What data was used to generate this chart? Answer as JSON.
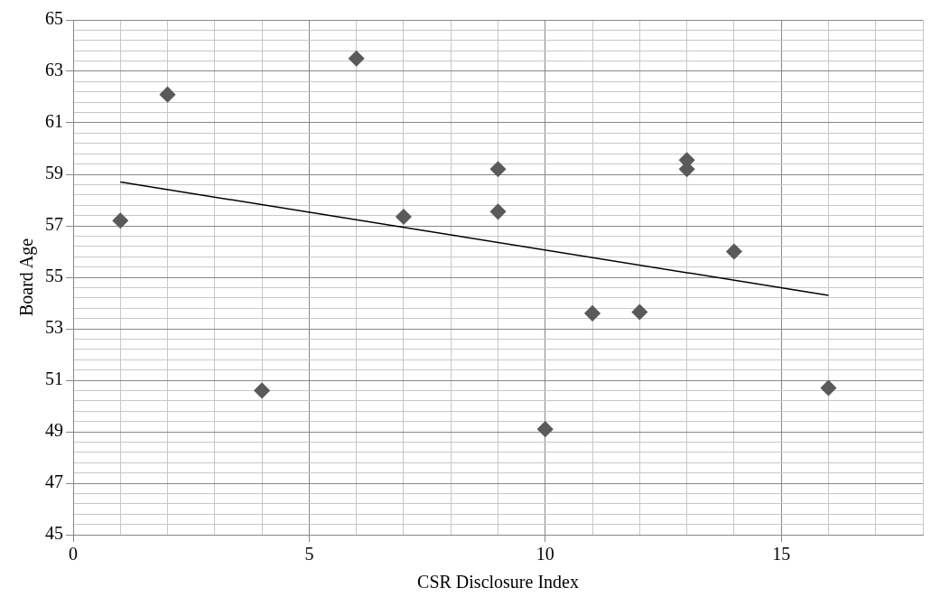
{
  "chart_data": {
    "type": "scatter",
    "xlabel": "CSR Disclosure Index",
    "ylabel": "Board Age",
    "x": [
      1,
      2,
      4,
      6,
      7,
      9,
      9,
      10,
      11,
      12,
      13,
      13,
      14,
      16
    ],
    "series": [
      {
        "color": "#5a5a5a",
        "marker": "diamond",
        "values": [
          57.2,
          62.1,
          50.6,
          63.5,
          57.35,
          59.2,
          57.55,
          49.1,
          53.6,
          53.65,
          59.55,
          59.2,
          56.0,
          50.7
        ]
      },
      {
        "type": "line",
        "color": "#000000",
        "marker": "none",
        "line_style": "solid",
        "x": [
          1,
          16
        ],
        "values": [
          58.7,
          54.3
        ]
      }
    ],
    "xlim": [
      0,
      18
    ],
    "xticks": [
      0,
      {
        "value": 1,
        "label": null
      },
      {
        "value": 2,
        "label": null
      },
      {
        "value": 3,
        "label": null
      },
      {
        "value": 4,
        "label": null
      },
      5,
      {
        "value": 6,
        "label": null
      },
      {
        "value": 7,
        "label": null
      },
      {
        "value": 8,
        "label": null
      },
      {
        "value": 9,
        "label": null
      },
      10,
      {
        "value": 11,
        "label": null
      },
      {
        "value": 12,
        "label": null
      },
      {
        "value": 13,
        "label": null
      },
      {
        "value": 14,
        "label": null
      },
      15,
      {
        "value": 16,
        "label": null
      },
      {
        "value": 17,
        "label": null
      },
      {
        "value": 18,
        "label": null
      }
    ],
    "ylim": [
      45,
      65
    ],
    "yticks": [
      45,
      {
        "value": 45.4,
        "label": null
      },
      {
        "value": 45.8,
        "label": null
      },
      {
        "value": 46.2,
        "label": null
      },
      {
        "value": 46.6,
        "label": null
      },
      47,
      {
        "value": 47.4,
        "label": null
      },
      {
        "value": 47.8,
        "label": null
      },
      {
        "value": 48.2,
        "label": null
      },
      {
        "value": 48.6,
        "label": null
      },
      49,
      {
        "value": 49.4,
        "label": null
      },
      {
        "value": 49.8,
        "label": null
      },
      {
        "value": 50.2,
        "label": null
      },
      {
        "value": 50.6,
        "label": null
      },
      51,
      {
        "value": 51.4,
        "label": null
      },
      {
        "value": 51.8,
        "label": null
      },
      {
        "value": 52.2,
        "label": null
      },
      {
        "value": 52.6,
        "label": null
      },
      53,
      {
        "value": 53.4,
        "label": null
      },
      {
        "value": 53.8,
        "label": null
      },
      {
        "value": 54.2,
        "label": null
      },
      {
        "value": 54.6,
        "label": null
      },
      55,
      {
        "value": 55.4,
        "label": null
      },
      {
        "value": 55.8,
        "label": null
      },
      {
        "value": 56.2,
        "label": null
      },
      {
        "value": 56.6,
        "label": null
      },
      57,
      {
        "value": 57.4,
        "label": null
      },
      {
        "value": 57.8,
        "label": null
      },
      {
        "value": 58.2,
        "label": null
      },
      {
        "value": 58.6,
        "label": null
      },
      59,
      {
        "value": 59.4,
        "label": null
      },
      {
        "value": 59.8,
        "label": null
      },
      {
        "value": 60.2,
        "label": null
      },
      {
        "value": 60.6,
        "label": null
      },
      61,
      {
        "value": 61.4,
        "label": null
      },
      {
        "value": 61.8,
        "label": null
      },
      {
        "value": 62.2,
        "label": null
      },
      {
        "value": 62.6,
        "label": null
      },
      63,
      {
        "value": 63.4,
        "label": null
      },
      {
        "value": 63.8,
        "label": null
      },
      {
        "value": 64.2,
        "label": null
      },
      {
        "value": 64.6,
        "label": null
      },
      65
    ],
    "grid": true,
    "legend": false
  }
}
